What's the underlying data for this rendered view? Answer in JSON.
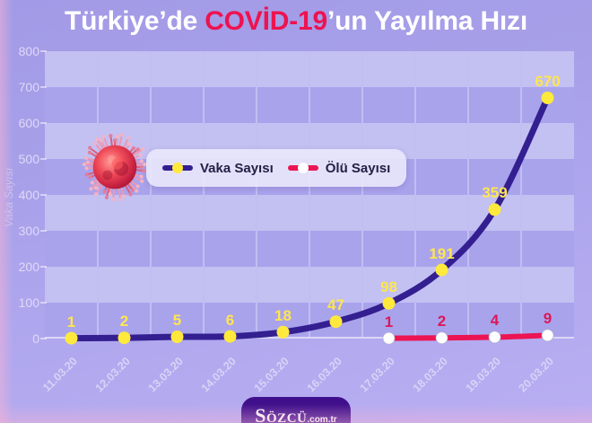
{
  "title": {
    "prefix": "Türkiye’de ",
    "highlight": "COVİD-19",
    "suffix": "’un Yayılma Hızı"
  },
  "branding": {
    "logo_name": "Sözcü",
    "logo_tld": ".com.tr"
  },
  "colors": {
    "title_text": "#ffffff",
    "title_highlight": "#ee1250",
    "band_light": "#c3c0f2",
    "band_dark": "#a9a3ec",
    "logo_background": "#40108c"
  },
  "icons": {
    "virus": "coronavirus-3d-illustration"
  },
  "chart_data": {
    "type": "line",
    "title": "Türkiye’de COVİD-19’un Yayılma Hızı",
    "xlabel": "",
    "ylabel": "Vaka Sayısı",
    "ylim": [
      0,
      800
    ],
    "yticks": [
      0,
      100,
      200,
      300,
      400,
      500,
      600,
      700,
      800
    ],
    "grid": "horizontal-bands-and-column-separators",
    "legend_position": "upper-left-inside",
    "categories": [
      "11.03.20",
      "12.03.20",
      "13.03.20",
      "14.03.20",
      "15.03.20",
      "16.03.20",
      "17.03.20",
      "18.03.20",
      "19.03.20",
      "20.03.20"
    ],
    "series": [
      {
        "name": "Vaka Sayısı",
        "values": [
          1,
          2,
          5,
          6,
          18,
          47,
          98,
          191,
          359,
          670
        ],
        "color": "#331f90",
        "point_color": "#ffe93c",
        "label_color": "#ffe64f"
      },
      {
        "name": "Ölü Sayısı",
        "values": [
          null,
          null,
          null,
          null,
          null,
          null,
          1,
          2,
          4,
          9
        ],
        "color": "#ec1452",
        "point_color": "#ffffff",
        "label_color": "#dc1758"
      }
    ]
  }
}
